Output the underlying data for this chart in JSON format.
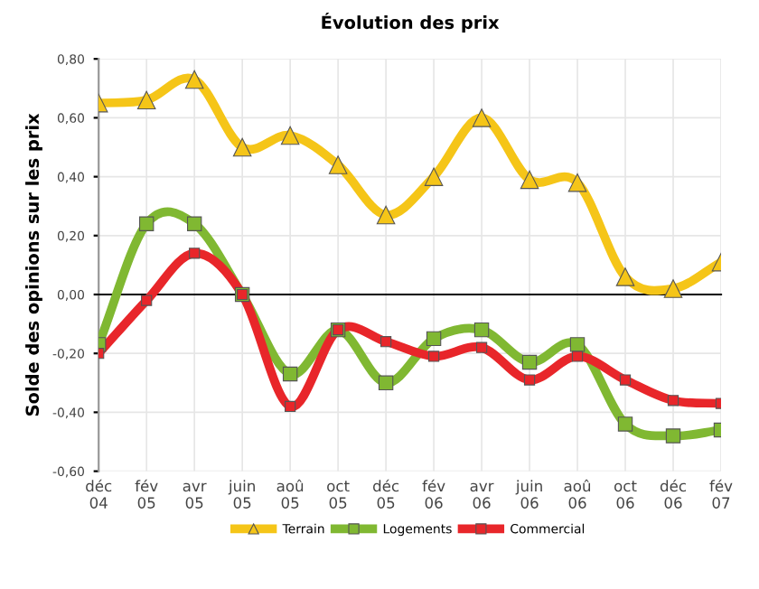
{
  "chart_data": {
    "type": "line",
    "title": "Évolution des prix",
    "ylabel": "Solde des opinions sur les prix",
    "categories": [
      "déc\n04",
      "fév\n05",
      "avr\n05",
      "juin\n05",
      "aoû\n05",
      "oct\n05",
      "déc\n05",
      "fév\n06",
      "avr\n06",
      "juin\n06",
      "aoû\n06",
      "oct\n06",
      "déc\n06",
      "fév\n07"
    ],
    "series": [
      {
        "name": "Terrain",
        "color": "#f5c518",
        "marker": "triangle",
        "values": [
          0.65,
          0.66,
          0.73,
          0.5,
          0.54,
          0.44,
          0.27,
          0.4,
          0.6,
          0.39,
          0.38,
          0.06,
          0.02,
          0.11
        ]
      },
      {
        "name": "Logements",
        "color": "#80b832",
        "marker": "square",
        "values": [
          -0.17,
          0.24,
          0.24,
          0.0,
          -0.27,
          -0.12,
          -0.3,
          -0.15,
          -0.12,
          -0.23,
          -0.17,
          -0.44,
          -0.48,
          -0.46
        ]
      },
      {
        "name": "Commercial",
        "color": "#e8262a",
        "marker": "square",
        "values": [
          -0.2,
          -0.02,
          0.14,
          0.0,
          -0.38,
          -0.12,
          -0.16,
          -0.21,
          -0.18,
          -0.29,
          -0.21,
          -0.29,
          -0.36,
          -0.37
        ]
      }
    ],
    "ylim": [
      -0.6,
      0.8
    ],
    "yticks": [
      {
        "value": -0.6,
        "label": "-0,60"
      },
      {
        "value": -0.4,
        "label": "-0,40"
      },
      {
        "value": -0.2,
        "label": "-0,20"
      },
      {
        "value": 0,
        "label": "0,00"
      },
      {
        "value": 0.2,
        "label": "0,20"
      },
      {
        "value": 0.4,
        "label": "0,40"
      },
      {
        "value": 0.6,
        "label": "0,60"
      },
      {
        "value": 0.8,
        "label": "0,80"
      }
    ],
    "grid": true,
    "legend": "bottom"
  }
}
